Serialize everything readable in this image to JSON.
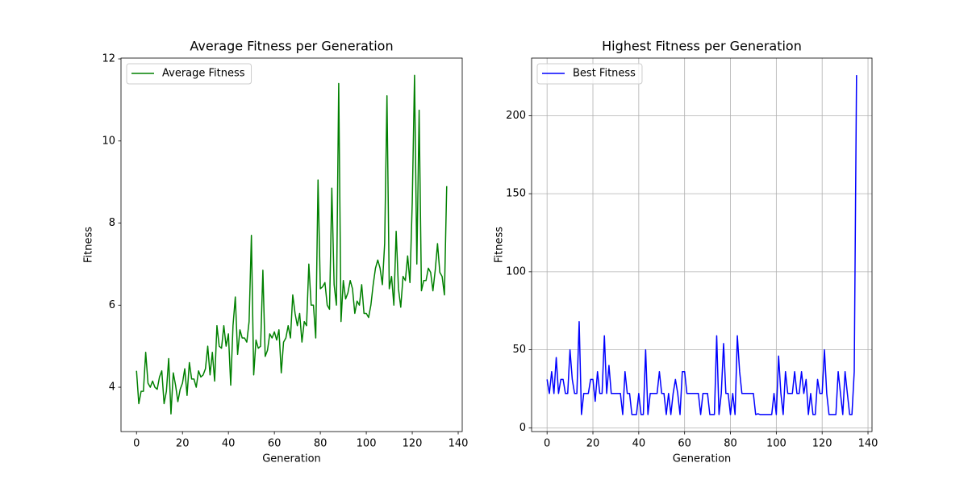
{
  "chart_data": [
    {
      "type": "line",
      "title": "Average Fitness per Generation",
      "xlabel": "Generation",
      "ylabel": "Fitness",
      "xlim": [
        -6.75,
        141.75
      ],
      "ylim": [
        2.92,
        12.02
      ],
      "xticks": [
        0,
        20,
        40,
        60,
        80,
        100,
        120,
        140
      ],
      "yticks": [
        4,
        6,
        8,
        10,
        12
      ],
      "grid": false,
      "legend": "upper left",
      "x": [
        0,
        1,
        2,
        3,
        4,
        5,
        6,
        7,
        8,
        9,
        10,
        11,
        12,
        13,
        14,
        15,
        16,
        17,
        18,
        19,
        20,
        21,
        22,
        23,
        24,
        25,
        26,
        27,
        28,
        29,
        30,
        31,
        32,
        33,
        34,
        35,
        36,
        37,
        38,
        39,
        40,
        41,
        42,
        43,
        44,
        45,
        46,
        47,
        48,
        49,
        50,
        51,
        52,
        53,
        54,
        55,
        56,
        57,
        58,
        59,
        60,
        61,
        62,
        63,
        64,
        65,
        66,
        67,
        68,
        69,
        70,
        71,
        72,
        73,
        74,
        75,
        76,
        77,
        78,
        79,
        80,
        81,
        82,
        83,
        84,
        85,
        86,
        87,
        88,
        89,
        90,
        91,
        92,
        93,
        94,
        95,
        96,
        97,
        98,
        99,
        100,
        101,
        102,
        103,
        104,
        105,
        106,
        107,
        108,
        109,
        110,
        111,
        112,
        113,
        114,
        115,
        116,
        117,
        118,
        119,
        120,
        121,
        122,
        123,
        124,
        125,
        126,
        127,
        128,
        129,
        130,
        131,
        132,
        133,
        134,
        135
      ],
      "series": [
        {
          "name": "Average Fitness",
          "color": "#008000",
          "values": [
            4.4,
            3.6,
            3.9,
            3.9,
            4.85,
            4.1,
            4.0,
            4.15,
            4.0,
            3.95,
            4.25,
            4.4,
            3.6,
            3.9,
            4.7,
            3.35,
            4.35,
            4.05,
            3.65,
            3.95,
            4.1,
            4.45,
            3.8,
            4.6,
            4.2,
            4.2,
            4.0,
            4.4,
            4.25,
            4.3,
            4.45,
            5.0,
            4.3,
            4.85,
            4.15,
            5.5,
            5.0,
            4.95,
            5.5,
            5.0,
            5.3,
            4.05,
            5.5,
            6.2,
            4.8,
            5.4,
            5.2,
            5.2,
            5.1,
            5.6,
            7.7,
            4.3,
            5.15,
            4.95,
            5.0,
            6.85,
            4.75,
            4.9,
            5.3,
            5.2,
            5.35,
            5.15,
            5.4,
            4.35,
            5.1,
            5.2,
            5.5,
            5.2,
            6.25,
            5.8,
            5.5,
            5.8,
            5.1,
            5.6,
            5.5,
            7.0,
            6.0,
            6.0,
            5.2,
            9.05,
            6.4,
            6.45,
            6.55,
            6.0,
            5.9,
            8.85,
            6.5,
            6.0,
            11.4,
            5.6,
            6.6,
            6.15,
            6.3,
            6.6,
            6.4,
            5.8,
            6.1,
            6.0,
            6.5,
            5.8,
            5.8,
            5.7,
            6.0,
            6.5,
            6.9,
            7.1,
            6.9,
            6.5,
            7.5,
            11.1,
            6.4,
            6.7,
            6.0,
            7.8,
            6.4,
            5.95,
            6.7,
            6.6,
            7.2,
            6.55,
            8.5,
            11.6,
            7.0,
            10.75,
            6.35,
            6.6,
            6.6,
            6.9,
            6.8,
            6.35,
            6.85,
            7.5,
            6.8,
            6.7,
            6.25,
            8.9
          ]
        }
      ]
    },
    {
      "type": "line",
      "title": "Highest Fitness per Generation",
      "xlabel": "Generation",
      "ylabel": "Fitness",
      "xlim": [
        -6.75,
        141.75
      ],
      "ylim": [
        -2.4,
        236.9
      ],
      "xticks": [
        0,
        20,
        40,
        60,
        80,
        100,
        120,
        140
      ],
      "yticks": [
        0,
        50,
        100,
        150,
        200
      ],
      "grid": true,
      "legend": "upper left",
      "x": [
        0,
        1,
        2,
        3,
        4,
        5,
        6,
        7,
        8,
        9,
        10,
        11,
        12,
        13,
        14,
        15,
        16,
        17,
        18,
        19,
        20,
        21,
        22,
        23,
        24,
        25,
        26,
        27,
        28,
        29,
        30,
        31,
        32,
        33,
        34,
        35,
        36,
        37,
        38,
        39,
        40,
        41,
        42,
        43,
        44,
        45,
        46,
        47,
        48,
        49,
        50,
        51,
        52,
        53,
        54,
        55,
        56,
        57,
        58,
        59,
        60,
        61,
        62,
        63,
        64,
        65,
        66,
        67,
        68,
        69,
        70,
        71,
        72,
        73,
        74,
        75,
        76,
        77,
        78,
        79,
        80,
        81,
        82,
        83,
        84,
        85,
        86,
        87,
        88,
        89,
        90,
        91,
        92,
        93,
        94,
        95,
        96,
        97,
        98,
        99,
        100,
        101,
        102,
        103,
        104,
        105,
        106,
        107,
        108,
        109,
        110,
        111,
        112,
        113,
        114,
        115,
        116,
        117,
        118,
        119,
        120,
        121,
        122,
        123,
        124,
        125,
        126,
        127,
        128,
        129,
        130,
        131,
        132,
        133,
        134,
        135
      ],
      "series": [
        {
          "name": "Best Fitness",
          "color": "#0000ff",
          "values": [
            31,
            22,
            36,
            22,
            45,
            22,
            31,
            31,
            22,
            22,
            50,
            31,
            22,
            22,
            68,
            8.5,
            22,
            22,
            22,
            31,
            31,
            17,
            36,
            22,
            22,
            59,
            22,
            40,
            22,
            22,
            22,
            22,
            22,
            8.5,
            36,
            22,
            22,
            8.5,
            8.5,
            8.5,
            22,
            8.5,
            8.5,
            50,
            8.5,
            22,
            22,
            22,
            22,
            36,
            22,
            22,
            8.5,
            22,
            8.5,
            22,
            31,
            22,
            8.5,
            36,
            36,
            22,
            22,
            22,
            22,
            22,
            22,
            8.5,
            22,
            22,
            22,
            8.5,
            8.5,
            8.5,
            59,
            8.5,
            22,
            54,
            22,
            22,
            8.5,
            22,
            8.5,
            59,
            36,
            22,
            22,
            22,
            22,
            22,
            22,
            8.5,
            9,
            8.5,
            8.5,
            8.5,
            8.5,
            8.5,
            8.5,
            22,
            8.5,
            46,
            22,
            8.5,
            36,
            22,
            22,
            22,
            36,
            22,
            22,
            36,
            22,
            31,
            8.5,
            22,
            8.5,
            8.5,
            31,
            22,
            22,
            50,
            22,
            8.5,
            8.5,
            8.5,
            8.5,
            36,
            22,
            8.5,
            36,
            22,
            8.5,
            8.5,
            36,
            226
          ]
        }
      ]
    }
  ]
}
